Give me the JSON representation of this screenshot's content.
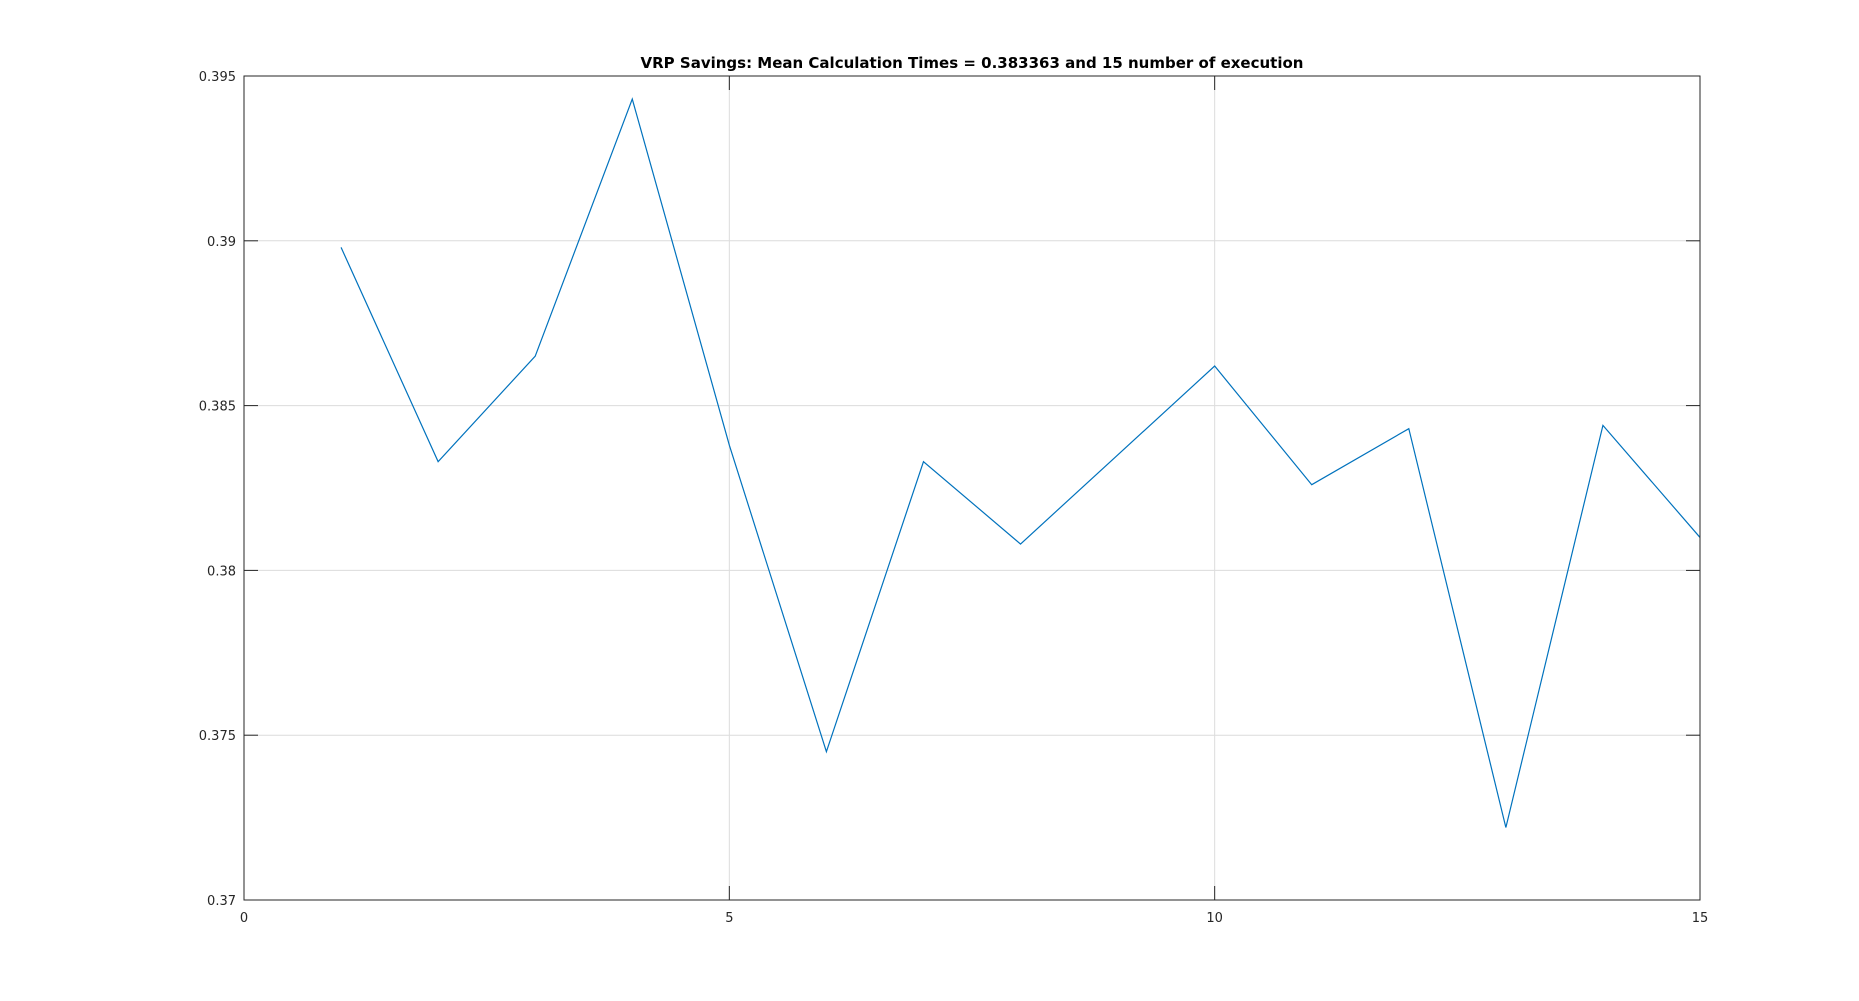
{
  "chart_data": {
    "type": "line",
    "title": "VRP Savings: Mean Calculation Times = 0.383363 and 15 number of execution",
    "xlabel": "",
    "ylabel": "",
    "xlim": [
      0,
      15
    ],
    "ylim": [
      0.37,
      0.395
    ],
    "grid": true,
    "legend": "none",
    "xticks": [
      0,
      5,
      10,
      15
    ],
    "xtick_labels": [
      "0",
      "5",
      "10",
      "15"
    ],
    "yticks": [
      0.37,
      0.375,
      0.38,
      0.385,
      0.39,
      0.395
    ],
    "ytick_labels": [
      "0.37",
      "0.375",
      "0.38",
      "0.385",
      "0.39",
      "0.395"
    ],
    "series": [
      {
        "color": "#0072bd",
        "x": [
          1,
          2,
          3,
          4,
          5,
          6,
          7,
          8,
          9,
          10,
          11,
          12,
          13,
          14,
          15
        ],
        "y": [
          0.3898,
          0.3833,
          0.3865,
          0.3943,
          0.3838,
          0.3745,
          0.3833,
          0.3808,
          0.3835,
          0.3862,
          0.3826,
          0.3843,
          0.3722,
          0.3844,
          0.381
        ]
      }
    ]
  }
}
